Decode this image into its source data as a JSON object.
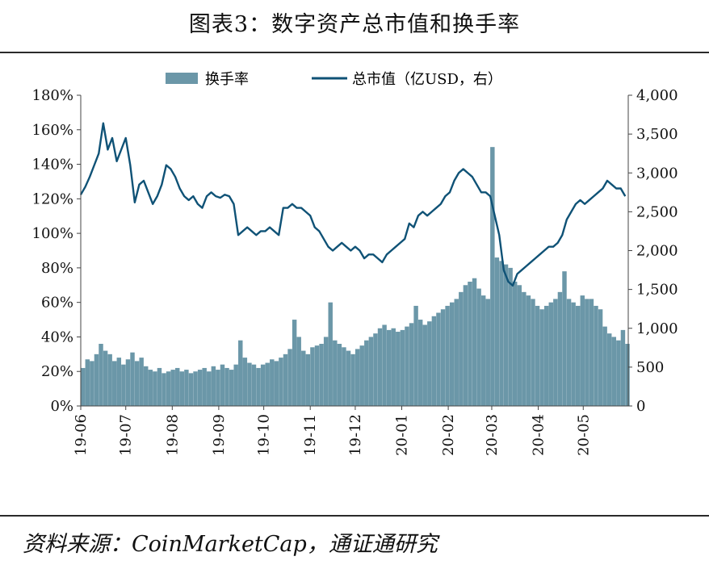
{
  "figure": {
    "title": "图表3：数字资产总市值和换手率",
    "source": "资料来源：CoinMarketCap，通证通研究"
  },
  "colors": {
    "bar": "#6b97a8",
    "line": "#0f5276",
    "axis": "#444444",
    "text": "#111111"
  },
  "chart_data": {
    "type": "bar+line",
    "title": "",
    "legend_position": "top-center",
    "grid": false,
    "x_start": "2019-06-01",
    "x_end": "2020-05-31",
    "x_ticks": [
      "19-06",
      "19-07",
      "19-08",
      "19-09",
      "19-10",
      "19-11",
      "19-12",
      "20-01",
      "20-02",
      "20-03",
      "20-04",
      "20-05"
    ],
    "y_left": {
      "min": 0,
      "max": 180,
      "step": 20,
      "suffix": "%",
      "ticks": [
        "0%",
        "20%",
        "40%",
        "60%",
        "80%",
        "100%",
        "120%",
        "140%",
        "160%",
        "180%"
      ]
    },
    "y_right": {
      "min": 0,
      "max": 4000,
      "step": 500,
      "ticks": [
        "0",
        "500",
        "1,000",
        "1,500",
        "2,000",
        "2,500",
        "3,000",
        "3,500",
        "4,000"
      ]
    },
    "series": [
      {
        "name": "换手率",
        "type": "bar",
        "axis": "left",
        "unit": "%",
        "x": [
          "2019-06-01",
          "2019-06-04",
          "2019-06-07",
          "2019-06-10",
          "2019-06-13",
          "2019-06-16",
          "2019-06-19",
          "2019-06-22",
          "2019-06-25",
          "2019-06-28",
          "2019-07-01",
          "2019-07-04",
          "2019-07-07",
          "2019-07-10",
          "2019-07-13",
          "2019-07-16",
          "2019-07-19",
          "2019-07-22",
          "2019-07-25",
          "2019-07-28",
          "2019-07-31",
          "2019-08-03",
          "2019-08-06",
          "2019-08-09",
          "2019-08-12",
          "2019-08-15",
          "2019-08-18",
          "2019-08-21",
          "2019-08-24",
          "2019-08-27",
          "2019-08-30",
          "2019-09-02",
          "2019-09-05",
          "2019-09-08",
          "2019-09-11",
          "2019-09-14",
          "2019-09-17",
          "2019-09-20",
          "2019-09-23",
          "2019-09-26",
          "2019-09-29",
          "2019-10-02",
          "2019-10-05",
          "2019-10-08",
          "2019-10-11",
          "2019-10-14",
          "2019-10-17",
          "2019-10-20",
          "2019-10-23",
          "2019-10-26",
          "2019-10-29",
          "2019-11-01",
          "2019-11-04",
          "2019-11-07",
          "2019-11-10",
          "2019-11-13",
          "2019-11-16",
          "2019-11-19",
          "2019-11-22",
          "2019-11-25",
          "2019-11-28",
          "2019-12-01",
          "2019-12-04",
          "2019-12-07",
          "2019-12-10",
          "2019-12-13",
          "2019-12-16",
          "2019-12-19",
          "2019-12-22",
          "2019-12-25",
          "2019-12-28",
          "2019-12-31",
          "2020-01-03",
          "2020-01-06",
          "2020-01-09",
          "2020-01-12",
          "2020-01-15",
          "2020-01-18",
          "2020-01-21",
          "2020-01-24",
          "2020-01-27",
          "2020-01-30",
          "2020-02-02",
          "2020-02-05",
          "2020-02-08",
          "2020-02-11",
          "2020-02-14",
          "2020-02-17",
          "2020-02-20",
          "2020-02-23",
          "2020-02-26",
          "2020-02-29",
          "2020-03-03",
          "2020-03-06",
          "2020-03-09",
          "2020-03-12",
          "2020-03-15",
          "2020-03-18",
          "2020-03-21",
          "2020-03-24",
          "2020-03-27",
          "2020-03-30",
          "2020-04-02",
          "2020-04-05",
          "2020-04-08",
          "2020-04-11",
          "2020-04-14",
          "2020-04-17",
          "2020-04-20",
          "2020-04-23",
          "2020-04-26",
          "2020-04-29",
          "2020-05-02",
          "2020-05-05",
          "2020-05-08",
          "2020-05-11",
          "2020-05-14",
          "2020-05-17",
          "2020-05-20",
          "2020-05-23",
          "2020-05-26",
          "2020-05-29"
        ],
        "values": [
          22,
          27,
          26,
          30,
          36,
          32,
          30,
          26,
          28,
          24,
          27,
          31,
          26,
          28,
          23,
          21,
          20,
          22,
          19,
          20,
          21,
          22,
          20,
          21,
          19,
          20,
          21,
          22,
          20,
          23,
          21,
          24,
          22,
          21,
          24,
          38,
          28,
          25,
          24,
          22,
          24,
          25,
          27,
          26,
          28,
          30,
          33,
          50,
          40,
          32,
          30,
          34,
          35,
          36,
          40,
          60,
          38,
          36,
          34,
          32,
          30,
          33,
          35,
          38,
          40,
          42,
          45,
          47,
          44,
          45,
          43,
          44,
          46,
          48,
          58,
          50,
          47,
          49,
          52,
          54,
          56,
          58,
          60,
          62,
          66,
          70,
          72,
          74,
          68,
          64,
          62,
          150,
          86,
          84,
          82,
          80,
          72,
          70,
          66,
          64,
          62,
          58,
          56,
          58,
          60,
          62,
          66,
          78,
          62,
          60,
          58,
          64,
          62,
          62,
          58,
          56,
          46,
          42,
          40,
          38,
          44,
          36
        ]
      },
      {
        "name": "总市值（亿USD，右）",
        "type": "line",
        "axis": "right",
        "unit": "亿USD",
        "x": [
          "2019-06-01",
          "2019-06-04",
          "2019-06-07",
          "2019-06-10",
          "2019-06-13",
          "2019-06-16",
          "2019-06-19",
          "2019-06-22",
          "2019-06-25",
          "2019-06-28",
          "2019-07-01",
          "2019-07-04",
          "2019-07-07",
          "2019-07-10",
          "2019-07-13",
          "2019-07-16",
          "2019-07-19",
          "2019-07-22",
          "2019-07-25",
          "2019-07-28",
          "2019-07-31",
          "2019-08-03",
          "2019-08-06",
          "2019-08-09",
          "2019-08-12",
          "2019-08-15",
          "2019-08-18",
          "2019-08-21",
          "2019-08-24",
          "2019-08-27",
          "2019-08-30",
          "2019-09-02",
          "2019-09-05",
          "2019-09-08",
          "2019-09-11",
          "2019-09-14",
          "2019-09-17",
          "2019-09-20",
          "2019-09-23",
          "2019-09-26",
          "2019-09-29",
          "2019-10-02",
          "2019-10-05",
          "2019-10-08",
          "2019-10-11",
          "2019-10-14",
          "2019-10-17",
          "2019-10-20",
          "2019-10-23",
          "2019-10-26",
          "2019-10-29",
          "2019-11-01",
          "2019-11-04",
          "2019-11-07",
          "2019-11-10",
          "2019-11-13",
          "2019-11-16",
          "2019-11-19",
          "2019-11-22",
          "2019-11-25",
          "2019-11-28",
          "2019-12-01",
          "2019-12-04",
          "2019-12-07",
          "2019-12-10",
          "2019-12-13",
          "2019-12-16",
          "2019-12-19",
          "2019-12-22",
          "2019-12-25",
          "2019-12-28",
          "2019-12-31",
          "2020-01-03",
          "2020-01-06",
          "2020-01-09",
          "2020-01-12",
          "2020-01-15",
          "2020-01-18",
          "2020-01-21",
          "2020-01-24",
          "2020-01-27",
          "2020-01-30",
          "2020-02-02",
          "2020-02-05",
          "2020-02-08",
          "2020-02-11",
          "2020-02-14",
          "2020-02-17",
          "2020-02-20",
          "2020-02-23",
          "2020-02-26",
          "2020-02-29",
          "2020-03-03",
          "2020-03-06",
          "2020-03-09",
          "2020-03-12",
          "2020-03-15",
          "2020-03-18",
          "2020-03-21",
          "2020-03-24",
          "2020-03-27",
          "2020-03-30",
          "2020-04-02",
          "2020-04-05",
          "2020-04-08",
          "2020-04-11",
          "2020-04-14",
          "2020-04-17",
          "2020-04-20",
          "2020-04-23",
          "2020-04-26",
          "2020-04-29",
          "2020-05-02",
          "2020-05-05",
          "2020-05-08",
          "2020-05-11",
          "2020-05-14",
          "2020-05-17",
          "2020-05-20",
          "2020-05-23",
          "2020-05-26",
          "2020-05-29"
        ],
        "values": [
          2720,
          2820,
          2950,
          3100,
          3250,
          3640,
          3300,
          3450,
          3150,
          3300,
          3450,
          3100,
          2620,
          2850,
          2900,
          2750,
          2600,
          2700,
          2850,
          3100,
          3050,
          2950,
          2800,
          2700,
          2650,
          2700,
          2600,
          2550,
          2700,
          2750,
          2700,
          2680,
          2720,
          2700,
          2600,
          2200,
          2250,
          2300,
          2250,
          2200,
          2250,
          2250,
          2300,
          2250,
          2200,
          2550,
          2550,
          2600,
          2550,
          2550,
          2500,
          2450,
          2300,
          2250,
          2150,
          2050,
          2000,
          2050,
          2100,
          2050,
          2000,
          2050,
          2000,
          1900,
          1950,
          1950,
          1900,
          1850,
          1950,
          2000,
          2050,
          2100,
          2150,
          2350,
          2300,
          2450,
          2500,
          2450,
          2500,
          2550,
          2600,
          2700,
          2750,
          2900,
          3000,
          3050,
          3000,
          2950,
          2850,
          2750,
          2750,
          2700,
          2450,
          2200,
          1750,
          1600,
          1550,
          1700,
          1750,
          1800,
          1850,
          1900,
          1950,
          2000,
          2050,
          2050,
          2100,
          2200,
          2400,
          2500,
          2600,
          2650,
          2600,
          2650,
          2700,
          2750,
          2800,
          2900,
          2850,
          2800,
          2800,
          2700
        ]
      }
    ]
  }
}
